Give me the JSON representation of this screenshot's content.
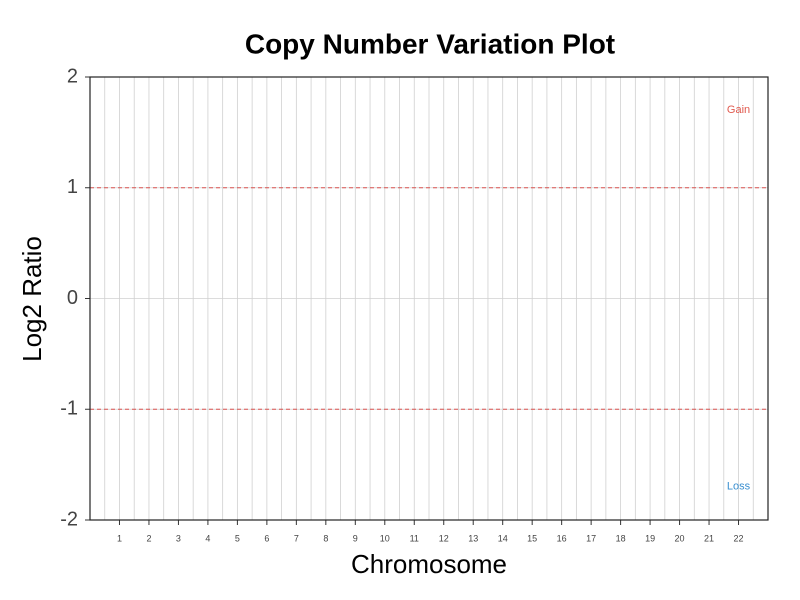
{
  "chart_data": {
    "type": "scatter",
    "title": "Copy Number Variation Plot",
    "x_label": "Chromosome",
    "y_label": "Log2 Ratio",
    "categories": [
      "1",
      "2",
      "3",
      "4",
      "5",
      "6",
      "7",
      "8",
      "9",
      "10",
      "11",
      "12",
      "13",
      "14",
      "15",
      "16",
      "17",
      "18",
      "19",
      "20",
      "21",
      "22"
    ],
    "ylim": [
      -2,
      2
    ],
    "yticks": [
      -2,
      -1,
      0,
      1,
      2
    ],
    "grid": true,
    "thresholds": [
      1,
      -1
    ],
    "threshold_color": "#d9534f",
    "annotations": [
      {
        "text": "Gain",
        "x": 22,
        "y": 1.7,
        "color": "#e05a4f"
      },
      {
        "text": "Loss",
        "x": 22,
        "y": -1.7,
        "color": "#3a8fd0"
      }
    ]
  }
}
